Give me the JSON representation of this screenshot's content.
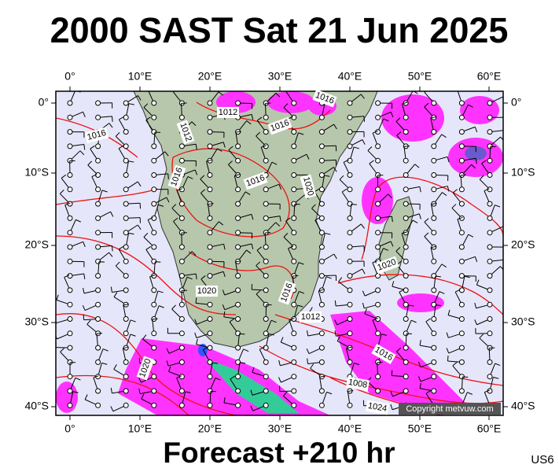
{
  "title": "2000 SAST Sat 21 Jun 2025",
  "axes": {
    "top": [
      "0°",
      "10°E",
      "20°E",
      "30°E",
      "40°E",
      "50°E",
      "60°E"
    ],
    "bottom": [
      "0°",
      "10°E",
      "20°E",
      "30°E",
      "40°E",
      "50°E",
      "60°E"
    ],
    "left": [
      "0°",
      "10°S",
      "20°S",
      "30°S",
      "40°S"
    ],
    "right": [
      "0°",
      "10°S",
      "20°S",
      "30°S",
      "40°S"
    ]
  },
  "isobar_labels": [
    "1016",
    "1012",
    "1012",
    "1016",
    "1016",
    "1016",
    "1016",
    "1020",
    "1020",
    "1020",
    "1016",
    "1012",
    "1016",
    "1008",
    "1024",
    "1020"
  ],
  "copyright": "Copyright metvuw.com",
  "footer": "Forecast +210 hr",
  "region": "US6"
}
